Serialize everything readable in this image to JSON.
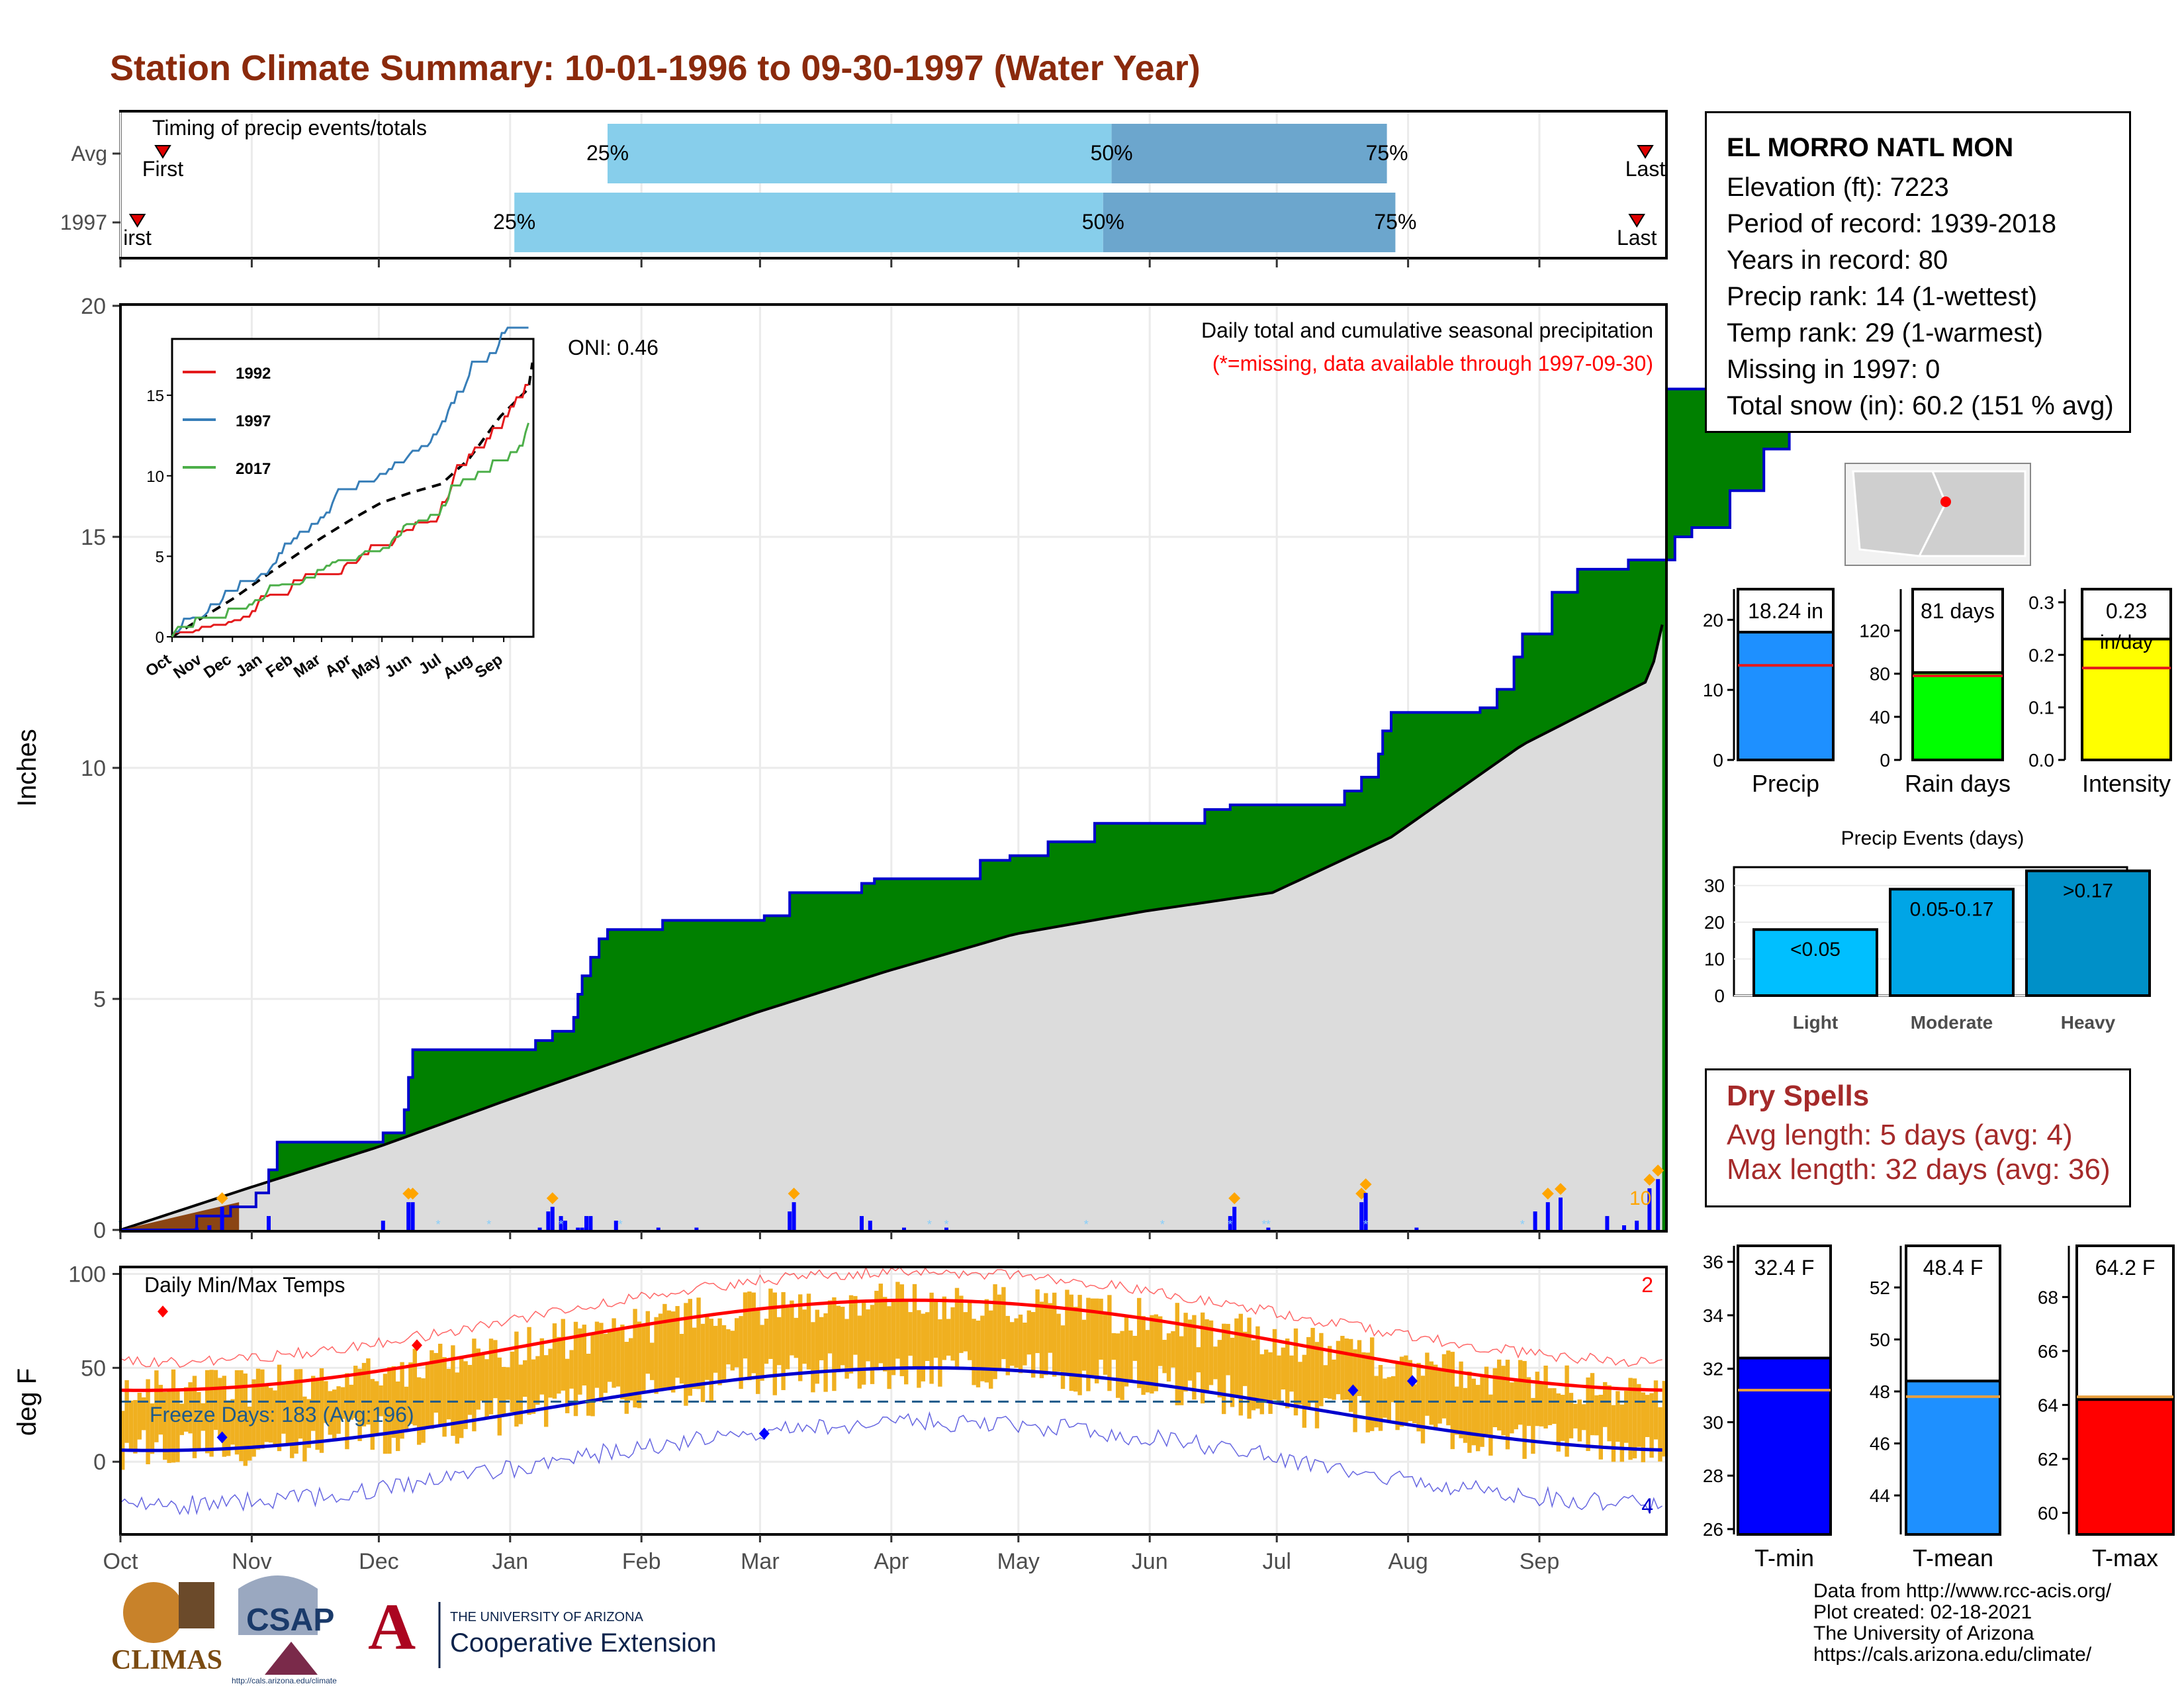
{
  "title": "Station Climate Summary: 10-01-1996 to 09-30-1997 (Water Year)",
  "months": [
    "Oct",
    "Nov",
    "Dec",
    "Jan",
    "Feb",
    "Mar",
    "Apr",
    "May",
    "Jun",
    "Jul",
    "Aug",
    "Sep"
  ],
  "timing": {
    "label": "Timing of precip events/totals",
    "rows": [
      "Avg",
      "1997"
    ],
    "first_label": "First",
    "first_label_1997": "irst",
    "last_label": "Last",
    "pct_labels": [
      "25%",
      "50%",
      "75%"
    ],
    "avg_day": {
      "first": 10,
      "p25": 115,
      "p50": 234,
      "p75": 299,
      "last": 360
    },
    "wy1997_day": {
      "first": 4,
      "p25": 93,
      "p50": 232,
      "p75": 301,
      "last": 358
    },
    "colors": {
      "light": "#87CEEB",
      "dark": "#6CA6CD",
      "marker": "#E00000"
    }
  },
  "precip": {
    "ylabel": "Inches",
    "yticks": [
      0,
      5,
      10,
      15,
      20
    ],
    "ylim": [
      0,
      20
    ],
    "annotation": "Daily total and cumulative seasonal precipitation",
    "missing_note": "(*=missing, data available through 1997-09-30)",
    "oni": "ONI: 0.46",
    "count_label": "10",
    "cumulative_1997_steps": [
      [
        0,
        0
      ],
      [
        18,
        0.3
      ],
      [
        26,
        0.5
      ],
      [
        32,
        0.8
      ],
      [
        35,
        1.3
      ],
      [
        37,
        1.9
      ],
      [
        62,
        2.1
      ],
      [
        67,
        2.6
      ],
      [
        68,
        3.3
      ],
      [
        69,
        3.9
      ],
      [
        87,
        3.9
      ],
      [
        98,
        4.1
      ],
      [
        102,
        4.3
      ],
      [
        107,
        4.6
      ],
      [
        108,
        5.1
      ],
      [
        109,
        5.5
      ],
      [
        111,
        5.9
      ],
      [
        113,
        6.3
      ],
      [
        115,
        6.5
      ],
      [
        128,
        6.7
      ],
      [
        152,
        6.8
      ],
      [
        158,
        7.3
      ],
      [
        175,
        7.5
      ],
      [
        178,
        7.6
      ],
      [
        198,
        7.6
      ],
      [
        203,
        8.0
      ],
      [
        210,
        8.1
      ],
      [
        219,
        8.4
      ],
      [
        230,
        8.8
      ],
      [
        256,
        9.1
      ],
      [
        262,
        9.2
      ],
      [
        289,
        9.5
      ],
      [
        293,
        9.8
      ],
      [
        297,
        10.3
      ],
      [
        298,
        10.8
      ],
      [
        300,
        11.2
      ],
      [
        321,
        11.3
      ],
      [
        325,
        11.7
      ],
      [
        329,
        12.4
      ],
      [
        331,
        12.9
      ],
      [
        338,
        13.8
      ],
      [
        344,
        14.3
      ],
      [
        356,
        14.5
      ],
      [
        367,
        15.0
      ],
      [
        371,
        15.2
      ],
      [
        380,
        16.0
      ],
      [
        388,
        16.9
      ],
      [
        394,
        17.8
      ],
      [
        398,
        18.0
      ],
      [
        403,
        18.2
      ]
    ],
    "avg_curve": [
      [
        0,
        0
      ],
      [
        30,
        0.9
      ],
      [
        61,
        1.8
      ],
      [
        91,
        2.8
      ],
      [
        122,
        3.8
      ],
      [
        150,
        4.7
      ],
      [
        181,
        5.6
      ],
      [
        211,
        6.4
      ],
      [
        242,
        6.9
      ],
      [
        272,
        7.3
      ],
      [
        300,
        8.5
      ],
      [
        331,
        10.5
      ],
      [
        361,
        11.9
      ],
      [
        364,
        13.1
      ]
    ],
    "daily_events_day": [
      18,
      21,
      24,
      35,
      62,
      68,
      69,
      99,
      101,
      102,
      104,
      105,
      108,
      109,
      110,
      111,
      117,
      127,
      136,
      158,
      159,
      175,
      177,
      185,
      195,
      262,
      263,
      271,
      293,
      294,
      306,
      334,
      337,
      340,
      351,
      355,
      358,
      361,
      363
    ],
    "daily_events_value": [
      0.05,
      0.1,
      0.5,
      0.3,
      0.2,
      0.6,
      0.6,
      0.05,
      0.4,
      0.5,
      0.3,
      0.2,
      0.05,
      0.05,
      0.3,
      0.3,
      0.2,
      0.05,
      0.05,
      0.4,
      0.6,
      0.3,
      0.2,
      0.05,
      0.05,
      0.3,
      0.5,
      0.05,
      0.6,
      0.8,
      0.05,
      0.4,
      0.6,
      0.7,
      0.3,
      0.1,
      0.2,
      0.9,
      1.1
    ],
    "colors": {
      "green": "#008000",
      "gray": "#DCDCDC",
      "blue": "#0000CD",
      "brown": "#8B4513",
      "orange": "#FFA500"
    }
  },
  "inset": {
    "series": [
      {
        "name": "1992",
        "color": "#E41A1C"
      },
      {
        "name": "1997",
        "color": "#377EB8"
      },
      {
        "name": "2017",
        "color": "#4DAF4A"
      }
    ],
    "yticks": [
      0,
      5,
      10,
      15
    ],
    "xticks": [
      "Oct",
      "Nov",
      "Dec",
      "Jan",
      "Feb",
      "Mar",
      "Apr",
      "May",
      "Jun",
      "Jul",
      "Aug",
      "Sep"
    ]
  },
  "temps": {
    "label": "Daily Min/Max Temps",
    "ylabel": "deg F",
    "yticks": [
      0,
      50,
      100
    ],
    "ylim": [
      -38,
      103
    ],
    "freeze_text": "Freeze Days: 183 (Avg:196)",
    "record_high_count": "2",
    "record_low_count": "4",
    "freeze_line": 32,
    "colors": {
      "bar": "#F0B020",
      "max": "#FF0000",
      "min": "#0000CD"
    }
  },
  "station": {
    "name": "EL MORRO NATL MON",
    "lines": [
      "Elevation (ft): 7223",
      "Period of record: 1939-2018",
      "Years in record: 80",
      "Precip rank: 14 (1-wettest)",
      "Temp rank: 29 (1-warmest)",
      "Missing in 1997: 0",
      "Total snow (in): 60.2 (151 % avg)"
    ]
  },
  "summary_bars": {
    "precip": {
      "label": "Precip",
      "value_text": "18.24 in",
      "value": 18.24,
      "avg": 13.5,
      "ylim": [
        0,
        24
      ],
      "yticks": [
        0,
        10,
        20
      ],
      "color": "#1E90FF"
    },
    "rain_days": {
      "label": "Rain days",
      "value_text": "81 days",
      "value": 81,
      "avg": 78,
      "ylim": [
        0,
        156
      ],
      "yticks": [
        0,
        40,
        80,
        120
      ],
      "color": "#00FF00"
    },
    "intensity": {
      "label": "Intensity",
      "value_text": "0.23",
      "unit_text": "in/day",
      "value": 0.23,
      "avg": 0.175,
      "ylim": [
        0,
        0.32
      ],
      "yticks": [
        "0.0",
        "0.1",
        "0.2",
        "0.3"
      ],
      "color": "#FFFF00"
    }
  },
  "precip_events": {
    "title": "Precip Events (days)",
    "categories": [
      "Light",
      "Moderate",
      "Heavy"
    ],
    "labels": [
      "<0.05",
      "0.05-0.17",
      ">0.17"
    ],
    "values": [
      18,
      29,
      34
    ],
    "yticks": [
      0,
      10,
      20,
      30
    ],
    "colors": [
      "#00BFFF",
      "#00A5E6",
      "#0090C8"
    ]
  },
  "dry_spells": {
    "title": "Dry Spells",
    "avg_line": "Avg length: 5 days (avg: 4)",
    "max_line": "Max length: 32 days (avg: 36)"
  },
  "temp_bars": {
    "tmin": {
      "label": "T-min",
      "value_text": "32.4 F",
      "value": 32.4,
      "avg": 31.2,
      "ylim": [
        25.8,
        36.5
      ],
      "yticks": [
        26,
        28,
        30,
        32,
        34,
        36
      ],
      "color": "#0000FF"
    },
    "tmean": {
      "label": "T-mean",
      "value_text": "48.4 F",
      "value": 48.4,
      "avg": 47.8,
      "ylim": [
        42.5,
        53.5
      ],
      "yticks": [
        44,
        46,
        48,
        50,
        52
      ],
      "color": "#1E90FF"
    },
    "tmax": {
      "label": "T-max",
      "value_text": "64.2 F",
      "value": 64.2,
      "avg": 64.3,
      "ylim": [
        59.2,
        69.8
      ],
      "yticks": [
        60,
        62,
        64,
        66,
        68
      ],
      "color": "#FF0000"
    }
  },
  "logos": {
    "climas": "CLIMAS",
    "csap": "CSAP",
    "csap_url": "http://cals.arizona.edu/climate",
    "ua_small": "THE UNIVERSITY OF ARIZONA",
    "ua_big": "Cooperative Extension",
    "ua_mark": "A"
  },
  "credits": [
    "Data from http://www.rcc-acis.org/",
    "Plot created: 02-18-2021",
    "The University of Arizona",
    "https://cals.arizona.edu/climate/"
  ]
}
